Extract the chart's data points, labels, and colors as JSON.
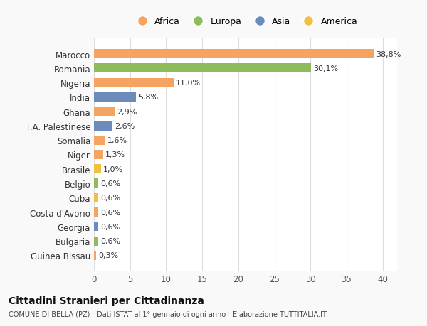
{
  "categories": [
    "Guinea Bissau",
    "Bulgaria",
    "Georgia",
    "Costa d'Avorio",
    "Cuba",
    "Belgio",
    "Brasile",
    "Niger",
    "Somalia",
    "T.A. Palestinese",
    "Ghana",
    "India",
    "Nigeria",
    "Romania",
    "Marocco"
  ],
  "values": [
    0.3,
    0.6,
    0.6,
    0.6,
    0.6,
    0.6,
    1.0,
    1.3,
    1.6,
    2.6,
    2.9,
    5.8,
    11.0,
    30.1,
    38.8
  ],
  "labels": [
    "0,3%",
    "0,6%",
    "0,6%",
    "0,6%",
    "0,6%",
    "0,6%",
    "1,0%",
    "1,3%",
    "1,6%",
    "2,6%",
    "2,9%",
    "5,8%",
    "11,0%",
    "30,1%",
    "38,8%"
  ],
  "colors": [
    "#f4a460",
    "#8fbc5a",
    "#6b8cba",
    "#f4a460",
    "#f0c040",
    "#8fbc5a",
    "#f0c040",
    "#f4a460",
    "#f4a460",
    "#6b8cba",
    "#f4a460",
    "#6b8cba",
    "#f4a460",
    "#8fbc5a",
    "#f4a460"
  ],
  "legend": [
    {
      "label": "Africa",
      "color": "#f4a460"
    },
    {
      "label": "Europa",
      "color": "#8fbc5a"
    },
    {
      "label": "Asia",
      "color": "#6b8cba"
    },
    {
      "label": "America",
      "color": "#f0c040"
    }
  ],
  "title": "Cittadini Stranieri per Cittadinanza",
  "subtitle": "COMUNE DI BELLA (PZ) - Dati ISTAT al 1° gennaio di ogni anno - Elaborazione TUTTITALIA.IT",
  "xlim": [
    0,
    42
  ],
  "xticks": [
    0,
    5,
    10,
    15,
    20,
    25,
    30,
    35,
    40
  ],
  "bg_color": "#f9f9f9",
  "bar_bg_color": "#ffffff",
  "grid_color": "#dddddd"
}
